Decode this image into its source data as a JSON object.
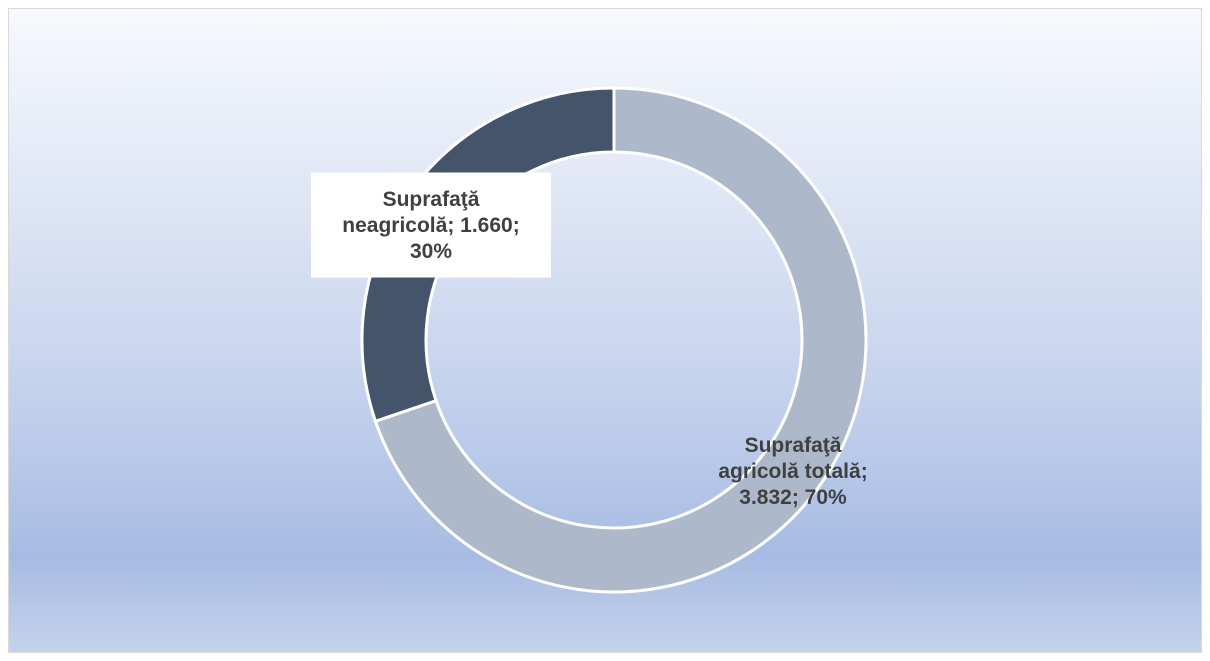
{
  "chart_data": {
    "type": "pie",
    "variant": "donut",
    "categories": [
      "Suprafaţă agricolă totală",
      "Suprafaţă neagricolă"
    ],
    "values": [
      3832,
      1660
    ],
    "value_labels": [
      "3.832",
      "1.660"
    ],
    "percentages": [
      70,
      30
    ],
    "data_labels": [
      {
        "lines": [
          "Suprafaţă",
          "agricolă totală;",
          "3.832; 70%"
        ]
      },
      {
        "lines": [
          "Suprafaţă",
          "neagricolă; 1.660;",
          "30%"
        ]
      }
    ],
    "colors": [
      "#adb9ca",
      "#44546a"
    ],
    "title": "",
    "legend": "none"
  }
}
